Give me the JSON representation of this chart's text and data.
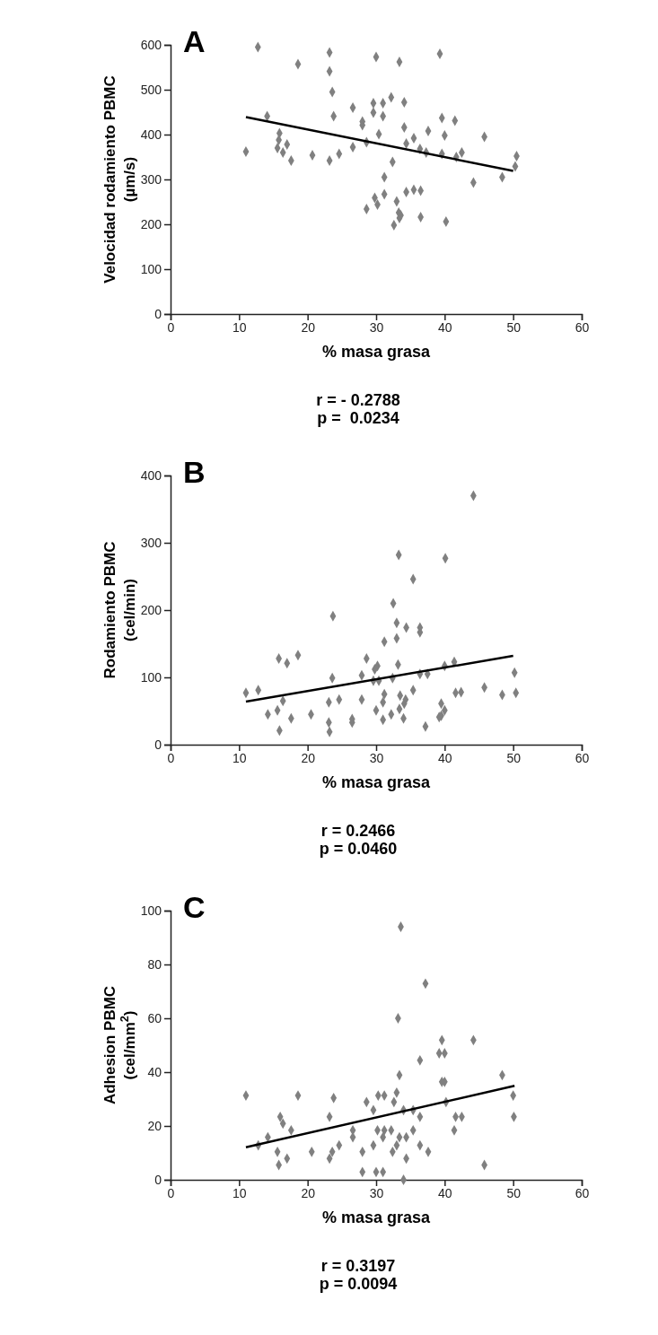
{
  "chart_data": [
    {
      "type": "scatter",
      "title": "A",
      "xlabel": "% masa grasa",
      "ylabel": "Velocidad rodamiento PBMC (µm/s)",
      "xlim": [
        0,
        60
      ],
      "ylim": [
        0,
        600
      ],
      "xticks": [
        0,
        10,
        20,
        30,
        40,
        50,
        60
      ],
      "yticks": [
        0,
        100,
        200,
        300,
        400,
        500,
        600
      ],
      "line_style": "solid",
      "annotations": [
        "r = - 0.2788",
        "p =  0.0234"
      ],
      "series": [
        {
          "marker": "diamond",
          "color": "#808080",
          "x": [
            12.75,
            23.2,
            30.0,
            33.4,
            39.3,
            18.6,
            23.2,
            23.6,
            32.2,
            29.6,
            31.0,
            34.1,
            26.6,
            29.6,
            31.0,
            23.8,
            14.1,
            39.6,
            41.5,
            28.0,
            28.0,
            34.1,
            37.6,
            15.9,
            30.4,
            40.0,
            45.8,
            35.5,
            15.8,
            28.6,
            34.4,
            17.0,
            11.0,
            15.6,
            26.6,
            36.4,
            16.4,
            37.3,
            39.6,
            42.5,
            20.7,
            24.6,
            41.7,
            50.5,
            17.6,
            23.2,
            32.4,
            50.3,
            31.2,
            48.4,
            44.2,
            34.4,
            35.5,
            36.5,
            31.2,
            29.8,
            33.0,
            30.2,
            28.6,
            33.3,
            33.6,
            33.4,
            36.5,
            40.2,
            32.6
          ],
          "values": [
            595,
            583,
            573,
            562,
            580,
            557,
            541,
            495,
            483,
            470,
            470,
            472,
            460,
            449,
            441,
            441,
            441,
            437,
            431,
            429,
            421,
            416,
            408,
            403,
            401,
            398,
            395,
            392,
            388,
            383,
            380,
            378,
            362,
            370,
            372,
            368,
            360,
            360,
            357,
            360,
            354,
            357,
            350,
            352,
            342,
            342,
            339,
            329,
            305,
            305,
            293,
            272,
            277,
            275,
            267,
            259,
            251,
            244,
            234,
            226,
            220,
            214,
            216,
            206,
            198
          ]
        },
        {
          "type": "line",
          "marker": "none",
          "color": "#000000",
          "x": [
            11.0,
            50.0
          ],
          "values": [
            439,
            319
          ]
        }
      ]
    },
    {
      "type": "scatter",
      "title": "B",
      "xlabel": "% masa grasa",
      "ylabel": "Rodamiento PBMC (cel/min)",
      "xlim": [
        0,
        60
      ],
      "ylim": [
        0,
        400
      ],
      "xticks": [
        0,
        10,
        20,
        30,
        40,
        50,
        60
      ],
      "yticks": [
        0,
        100,
        200,
        300,
        400
      ],
      "line_style": "solid",
      "annotations": [
        "r = 0.2466",
        "p = 0.0460"
      ],
      "series": [
        {
          "marker": "diamond",
          "color": "#808080",
          "x": [
            44.2,
            33.3,
            40.1,
            35.4,
            32.5,
            23.7,
            33.0,
            34.4,
            36.4,
            36.4,
            33.0,
            31.2,
            18.6,
            15.8,
            28.6,
            17.0,
            33.2,
            41.4,
            40.0,
            30.2,
            29.8,
            50.2,
            36.4,
            37.5,
            27.9,
            23.6,
            32.4,
            29.6,
            30.4,
            45.8,
            12.8,
            35.4,
            11.0,
            41.6,
            42.4,
            48.4,
            50.4,
            31.2,
            33.5,
            24.6,
            27.9,
            16.4,
            34.3,
            34.1,
            23.1,
            31.0,
            39.5,
            15.6,
            30.0,
            40.0,
            33.4,
            14.2,
            20.5,
            32.2,
            39.5,
            39.2,
            17.6,
            26.5,
            34.0,
            31.0,
            23.1,
            26.5,
            37.2,
            15.9,
            23.2
          ],
          "values": [
            370,
            282,
            277,
            246,
            210,
            191,
            181,
            174,
            174,
            167,
            158,
            153,
            133,
            128,
            128,
            121,
            119,
            123,
            117,
            117,
            112,
            107,
            105,
            105,
            103,
            99,
            99,
            95,
            95,
            85,
            81,
            81,
            77,
            77,
            78,
            74,
            77,
            75,
            73,
            67,
            67,
            65,
            67,
            61,
            63,
            63,
            61,
            51,
            51,
            51,
            53,
            45,
            45,
            45,
            43,
            41,
            39,
            38,
            39,
            37,
            33,
            33,
            27,
            21,
            19
          ]
        },
        {
          "type": "line",
          "marker": "none",
          "color": "#000000",
          "x": [
            11.0,
            50.0
          ],
          "values": [
            64,
            132
          ]
        }
      ]
    },
    {
      "type": "scatter",
      "title": "C",
      "xlabel": "% masa grasa",
      "ylabel": "Adhesion PBMC (cel/mm$^{2}$)",
      "xlim": [
        0,
        60
      ],
      "ylim": [
        0,
        100
      ],
      "xticks": [
        0,
        10,
        20,
        30,
        40,
        50,
        60
      ],
      "yticks": [
        0,
        20,
        40,
        60,
        80,
        100
      ],
      "line_style": "solid",
      "annotations": [
        "r = 0.3197",
        "p = 0.0094"
      ],
      "series": [
        {
          "marker": "diamond",
          "color": "#808080",
          "x": [
            33.6,
            37.2,
            33.2,
            39.6,
            44.2,
            39.2,
            40.0,
            36.4,
            33.4,
            48.4,
            39.6,
            40.0,
            11.0,
            18.6,
            30.3,
            31.2,
            23.8,
            50.0,
            33.0,
            28.6,
            32.6,
            40.2,
            29.6,
            34.0,
            35.4,
            16.0,
            23.2,
            36.4,
            41.6,
            42.5,
            50.1,
            16.4,
            17.6,
            26.6,
            30.2,
            31.2,
            32.2,
            35.4,
            41.4,
            14.2,
            26.6,
            31.0,
            33.4,
            34.4,
            12.8,
            24.6,
            29.6,
            33.0,
            36.4,
            15.6,
            20.6,
            23.6,
            28.0,
            32.4,
            37.6,
            17.0,
            23.2,
            34.4,
            15.8,
            45.8,
            28.0,
            30.0,
            31.0,
            34.0
          ],
          "values": [
            94.0,
            72.9,
            60.0,
            51.9,
            51.9,
            47.0,
            47.0,
            44.4,
            38.9,
            38.9,
            36.4,
            36.4,
            31.3,
            31.3,
            31.3,
            31.3,
            30.4,
            31.3,
            32.4,
            28.9,
            28.9,
            28.9,
            25.9,
            25.9,
            25.9,
            23.4,
            23.4,
            23.4,
            23.4,
            23.4,
            23.4,
            20.9,
            18.4,
            18.4,
            18.4,
            18.4,
            18.4,
            18.4,
            18.4,
            15.8,
            15.8,
            15.8,
            15.8,
            15.8,
            12.8,
            12.8,
            12.8,
            12.8,
            12.8,
            10.4,
            10.4,
            10.4,
            10.4,
            10.4,
            10.4,
            7.9,
            7.9,
            7.9,
            5.5,
            5.5,
            2.9,
            2.9,
            2.9,
            0
          ]
        },
        {
          "type": "line",
          "marker": "none",
          "color": "#000000",
          "x": [
            11.0,
            50.2
          ],
          "values": [
            12.1,
            34.9
          ]
        }
      ]
    }
  ]
}
